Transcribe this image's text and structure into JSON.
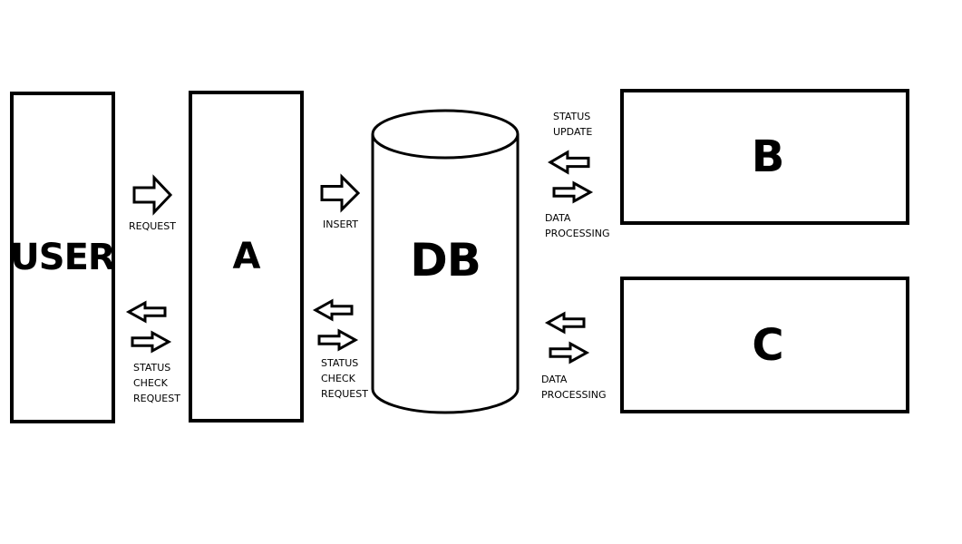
{
  "nodes": {
    "user": "USER",
    "a": "A",
    "db": "DB",
    "b": "B",
    "c": "C"
  },
  "labels": {
    "request": [
      "REQUEST"
    ],
    "insert": [
      "INSERT"
    ],
    "status_check_user": [
      "STATUS",
      "CHECK",
      "REQUEST"
    ],
    "status_check_a": [
      "STATUS",
      "CHECK",
      "REQUEST"
    ],
    "status_update": [
      "STATUS",
      "UPDATE"
    ],
    "data_processing_b": [
      "DATA",
      "PROCESSING"
    ],
    "data_processing_c": [
      "DATA",
      "PROCESSING"
    ]
  },
  "colors": {
    "stroke": "#000000",
    "fill": "#ffffff"
  }
}
